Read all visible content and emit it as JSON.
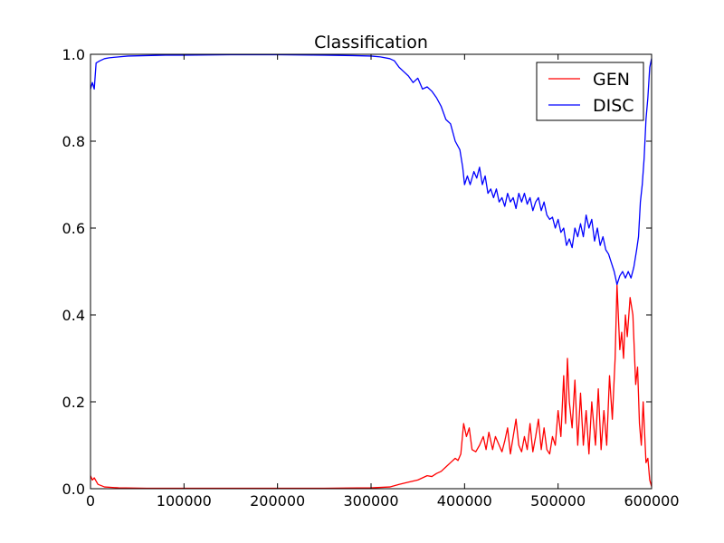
{
  "chart_data": {
    "type": "line",
    "title": "Classification",
    "xlabel": "",
    "ylabel": "",
    "xlim": [
      0,
      600000
    ],
    "ylim": [
      0.0,
      1.0
    ],
    "xticks": [
      0,
      100000,
      200000,
      300000,
      400000,
      500000,
      600000
    ],
    "xtick_labels": [
      "0",
      "100000",
      "200000",
      "300000",
      "400000",
      "500000",
      "600000"
    ],
    "yticks": [
      0.0,
      0.2,
      0.4,
      0.6,
      0.8,
      1.0
    ],
    "ytick_labels": [
      "0.0",
      "0.2",
      "0.4",
      "0.6",
      "0.8",
      "1.0"
    ],
    "grid": false,
    "legend_position": "top-right",
    "series": [
      {
        "name": "GEN",
        "color": "#ff0000",
        "points": [
          [
            0,
            0.03
          ],
          [
            2000,
            0.02
          ],
          [
            4000,
            0.025
          ],
          [
            8000,
            0.01
          ],
          [
            15000,
            0.004
          ],
          [
            30000,
            0.002
          ],
          [
            60000,
            0.001
          ],
          [
            100000,
            0.001
          ],
          [
            150000,
            0.001
          ],
          [
            200000,
            0.001
          ],
          [
            250000,
            0.001
          ],
          [
            300000,
            0.002
          ],
          [
            320000,
            0.004
          ],
          [
            330000,
            0.01
          ],
          [
            340000,
            0.015
          ],
          [
            350000,
            0.02
          ],
          [
            355000,
            0.025
          ],
          [
            360000,
            0.03
          ],
          [
            365000,
            0.028
          ],
          [
            370000,
            0.035
          ],
          [
            375000,
            0.04
          ],
          [
            380000,
            0.05
          ],
          [
            385000,
            0.06
          ],
          [
            390000,
            0.07
          ],
          [
            393000,
            0.065
          ],
          [
            396000,
            0.08
          ],
          [
            399000,
            0.15
          ],
          [
            402000,
            0.12
          ],
          [
            405000,
            0.14
          ],
          [
            408000,
            0.09
          ],
          [
            412000,
            0.085
          ],
          [
            416000,
            0.1
          ],
          [
            420000,
            0.12
          ],
          [
            423000,
            0.09
          ],
          [
            426000,
            0.13
          ],
          [
            430000,
            0.09
          ],
          [
            433000,
            0.12
          ],
          [
            437000,
            0.1
          ],
          [
            440000,
            0.085
          ],
          [
            443000,
            0.11
          ],
          [
            446000,
            0.14
          ],
          [
            449000,
            0.08
          ],
          [
            452000,
            0.12
          ],
          [
            455000,
            0.16
          ],
          [
            458000,
            0.1
          ],
          [
            461000,
            0.085
          ],
          [
            464000,
            0.12
          ],
          [
            467000,
            0.09
          ],
          [
            470000,
            0.15
          ],
          [
            473000,
            0.085
          ],
          [
            476000,
            0.12
          ],
          [
            479000,
            0.16
          ],
          [
            482000,
            0.09
          ],
          [
            485000,
            0.14
          ],
          [
            488000,
            0.09
          ],
          [
            491000,
            0.08
          ],
          [
            494000,
            0.12
          ],
          [
            497000,
            0.1
          ],
          [
            500000,
            0.18
          ],
          [
            503000,
            0.12
          ],
          [
            506000,
            0.26
          ],
          [
            508000,
            0.15
          ],
          [
            510000,
            0.3
          ],
          [
            512000,
            0.2
          ],
          [
            515000,
            0.14
          ],
          [
            518000,
            0.25
          ],
          [
            521000,
            0.1
          ],
          [
            524000,
            0.22
          ],
          [
            527000,
            0.1
          ],
          [
            530000,
            0.18
          ],
          [
            533000,
            0.08
          ],
          [
            536000,
            0.2
          ],
          [
            540000,
            0.1
          ],
          [
            543000,
            0.23
          ],
          [
            546000,
            0.09
          ],
          [
            549000,
            0.18
          ],
          [
            552000,
            0.1
          ],
          [
            555000,
            0.26
          ],
          [
            558000,
            0.16
          ],
          [
            561000,
            0.3
          ],
          [
            563000,
            0.47
          ],
          [
            566000,
            0.32
          ],
          [
            568000,
            0.36
          ],
          [
            570000,
            0.3
          ],
          [
            572000,
            0.4
          ],
          [
            574000,
            0.35
          ],
          [
            577000,
            0.44
          ],
          [
            580000,
            0.4
          ],
          [
            583000,
            0.24
          ],
          [
            585000,
            0.28
          ],
          [
            587000,
            0.15
          ],
          [
            589000,
            0.1
          ],
          [
            591000,
            0.2
          ],
          [
            594000,
            0.06
          ],
          [
            596000,
            0.07
          ],
          [
            598000,
            0.02
          ],
          [
            600000,
            0.005
          ]
        ]
      },
      {
        "name": "DISC",
        "color": "#0000ff",
        "points": [
          [
            0,
            0.92
          ],
          [
            2000,
            0.935
          ],
          [
            4000,
            0.92
          ],
          [
            6000,
            0.98
          ],
          [
            10000,
            0.985
          ],
          [
            15000,
            0.99
          ],
          [
            20000,
            0.992
          ],
          [
            30000,
            0.994
          ],
          [
            40000,
            0.996
          ],
          [
            60000,
            0.997
          ],
          [
            80000,
            0.998
          ],
          [
            100000,
            0.998
          ],
          [
            150000,
            0.999
          ],
          [
            200000,
            0.999
          ],
          [
            250000,
            0.998
          ],
          [
            280000,
            0.997
          ],
          [
            300000,
            0.996
          ],
          [
            310000,
            0.994
          ],
          [
            320000,
            0.99
          ],
          [
            325000,
            0.985
          ],
          [
            330000,
            0.97
          ],
          [
            335000,
            0.96
          ],
          [
            340000,
            0.95
          ],
          [
            345000,
            0.935
          ],
          [
            350000,
            0.945
          ],
          [
            355000,
            0.92
          ],
          [
            360000,
            0.925
          ],
          [
            365000,
            0.915
          ],
          [
            370000,
            0.9
          ],
          [
            375000,
            0.88
          ],
          [
            380000,
            0.85
          ],
          [
            385000,
            0.84
          ],
          [
            390000,
            0.8
          ],
          [
            395000,
            0.78
          ],
          [
            398000,
            0.74
          ],
          [
            400000,
            0.7
          ],
          [
            403000,
            0.72
          ],
          [
            406000,
            0.7
          ],
          [
            410000,
            0.73
          ],
          [
            413000,
            0.715
          ],
          [
            416000,
            0.74
          ],
          [
            419000,
            0.7
          ],
          [
            422000,
            0.72
          ],
          [
            425000,
            0.68
          ],
          [
            428000,
            0.69
          ],
          [
            431000,
            0.67
          ],
          [
            434000,
            0.69
          ],
          [
            437000,
            0.66
          ],
          [
            440000,
            0.67
          ],
          [
            443000,
            0.65
          ],
          [
            446000,
            0.68
          ],
          [
            449000,
            0.66
          ],
          [
            452000,
            0.67
          ],
          [
            455000,
            0.645
          ],
          [
            458000,
            0.68
          ],
          [
            461000,
            0.66
          ],
          [
            464000,
            0.68
          ],
          [
            467000,
            0.655
          ],
          [
            470000,
            0.67
          ],
          [
            473000,
            0.64
          ],
          [
            476000,
            0.66
          ],
          [
            479000,
            0.67
          ],
          [
            482000,
            0.64
          ],
          [
            485000,
            0.66
          ],
          [
            488000,
            0.63
          ],
          [
            491000,
            0.62
          ],
          [
            494000,
            0.625
          ],
          [
            497000,
            0.6
          ],
          [
            500000,
            0.62
          ],
          [
            503000,
            0.59
          ],
          [
            506000,
            0.6
          ],
          [
            509000,
            0.56
          ],
          [
            512000,
            0.575
          ],
          [
            515000,
            0.555
          ],
          [
            518000,
            0.6
          ],
          [
            521000,
            0.58
          ],
          [
            524000,
            0.61
          ],
          [
            527000,
            0.58
          ],
          [
            530000,
            0.63
          ],
          [
            533000,
            0.6
          ],
          [
            536000,
            0.62
          ],
          [
            539000,
            0.57
          ],
          [
            542000,
            0.6
          ],
          [
            545000,
            0.56
          ],
          [
            548000,
            0.58
          ],
          [
            551000,
            0.55
          ],
          [
            554000,
            0.54
          ],
          [
            557000,
            0.52
          ],
          [
            560000,
            0.5
          ],
          [
            563000,
            0.47
          ],
          [
            566000,
            0.49
          ],
          [
            569000,
            0.5
          ],
          [
            572000,
            0.485
          ],
          [
            575000,
            0.5
          ],
          [
            578000,
            0.485
          ],
          [
            581000,
            0.51
          ],
          [
            584000,
            0.55
          ],
          [
            586000,
            0.58
          ],
          [
            588000,
            0.66
          ],
          [
            590000,
            0.7
          ],
          [
            592000,
            0.76
          ],
          [
            594000,
            0.85
          ],
          [
            596000,
            0.9
          ],
          [
            598000,
            0.97
          ],
          [
            600000,
            0.99
          ]
        ]
      }
    ]
  }
}
